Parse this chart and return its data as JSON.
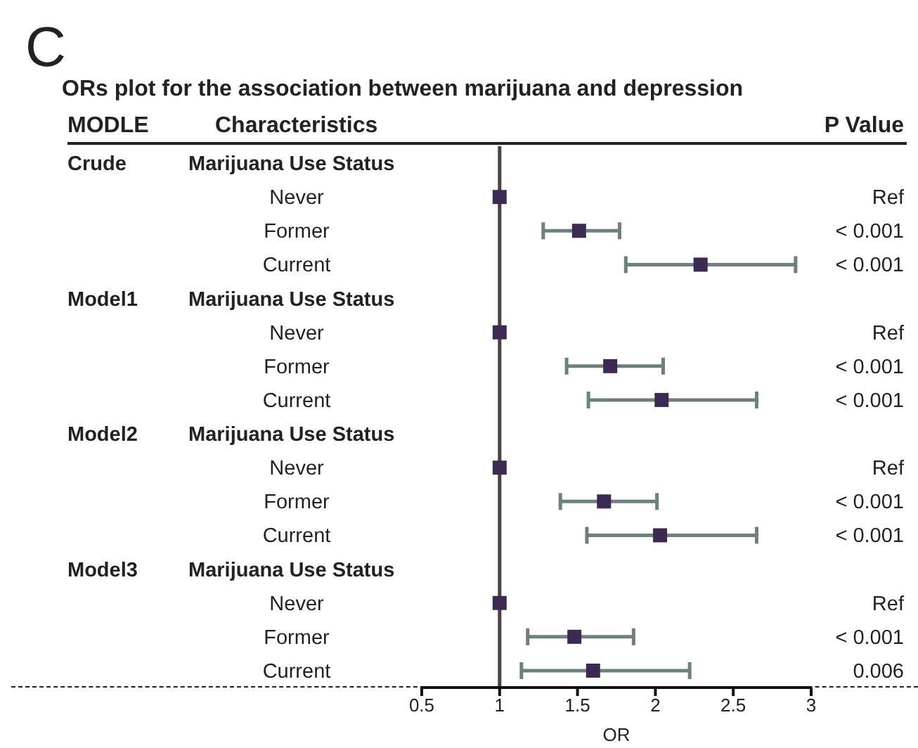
{
  "chart_data": {
    "type": "scatter",
    "orientation": "horizontal",
    "title": "ORs plot for the association between marijuana and depression",
    "xlabel": "OR",
    "annotations": [
      "C",
      "MODLE",
      "Characteristics",
      "P Value",
      "Crude",
      "Model1",
      "Model2",
      "Model3",
      "Ref",
      "< 0.001",
      "< 0.001",
      "Ref",
      "< 0.001",
      "< 0.001",
      "Ref",
      "< 0.001",
      "< 0.001",
      "Ref",
      "< 0.001",
      "0.006"
    ],
    "categories": [
      "Marijuana Use Status",
      "Never",
      "Former",
      "Current",
      "Marijuana Use Status",
      "Never",
      "Former",
      "Current",
      "Marijuana Use Status",
      "Never",
      "Former",
      "Current",
      "Marijuana Use Status",
      "Never",
      "Former",
      "Current"
    ],
    "values": [
      null,
      1,
      1.51,
      2.29,
      null,
      1,
      1.71,
      2.04,
      null,
      1,
      1.67,
      2.03,
      null,
      1,
      1.48,
      1.6
    ],
    "errors": [
      null,
      null,
      [
        1.28,
        1.77
      ],
      [
        1.81,
        2.9
      ],
      null,
      null,
      [
        1.43,
        2.05
      ],
      [
        1.57,
        2.65
      ],
      null,
      null,
      [
        1.39,
        2.01
      ],
      [
        1.56,
        2.65
      ],
      null,
      null,
      [
        1.18,
        1.86
      ],
      [
        1.14,
        2.22
      ]
    ],
    "color": "#3d2a52",
    "marker": "square",
    "xlim": [
      0.5,
      3
    ],
    "xticks": [
      0.5,
      1,
      1.5,
      2,
      2.5,
      3
    ],
    "ref_lines": [
      {
        "axis": "x",
        "value": 1,
        "color": "#4a4242"
      }
    ],
    "grid": false,
    "legend": false
  }
}
